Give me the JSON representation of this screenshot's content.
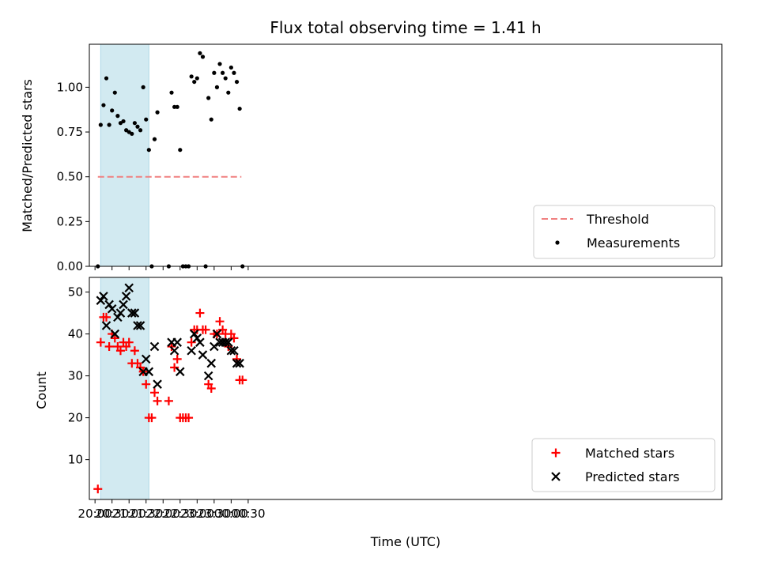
{
  "colors": {
    "threshold": "#f08080",
    "matched": "#ff0000",
    "predicted": "#000000",
    "measurements": "#000000",
    "shade": "#add8e6"
  },
  "chart_data": [
    {
      "type": "scatter",
      "title": "Flux total observing time = 1.41 h",
      "xlabel": "",
      "ylabel": "Matched/Predicted stars",
      "ylim": [
        0,
        1.24
      ],
      "yticks": [
        "0.00",
        "0.25",
        "0.50",
        "0.75",
        "1.00"
      ],
      "xrange_minutes": [
        -10,
        1105
      ],
      "shaded_interval": [
        "20:10",
        "21:35"
      ],
      "threshold": {
        "name": "Threshold",
        "y": 0.5,
        "x_start": "20:05",
        "x_end": "00:18"
      },
      "legend": {
        "position": "lower-right",
        "entries": [
          "Threshold",
          "Measurements"
        ]
      },
      "series": [
        {
          "name": "Measurements",
          "x": [
            "20:05",
            "20:10",
            "20:15",
            "20:20",
            "20:25",
            "20:30",
            "20:35",
            "20:40",
            "20:45",
            "20:50",
            "20:55",
            "21:00",
            "21:05",
            "21:10",
            "21:15",
            "21:20",
            "21:25",
            "21:30",
            "21:35",
            "21:40",
            "21:45",
            "21:50",
            "22:10",
            "22:15",
            "22:20",
            "22:25",
            "22:30",
            "22:35",
            "22:40",
            "22:45",
            "22:50",
            "22:55",
            "23:00",
            "23:05",
            "23:10",
            "23:15",
            "23:20",
            "23:25",
            "23:30",
            "23:35",
            "23:40",
            "23:45",
            "23:50",
            "23:55",
            "00:00",
            "00:05",
            "00:10",
            "00:15",
            "00:20"
          ],
          "values": [
            0.0,
            0.79,
            0.9,
            1.05,
            0.79,
            0.87,
            0.97,
            0.84,
            0.8,
            0.81,
            0.76,
            0.75,
            0.74,
            0.8,
            0.78,
            0.76,
            1.0,
            0.82,
            0.65,
            0.0,
            0.71,
            0.86,
            0.0,
            0.97,
            0.89,
            0.89,
            0.65,
            0.0,
            0.0,
            0.0,
            1.06,
            1.03,
            1.05,
            1.19,
            1.17,
            0.0,
            0.94,
            0.82,
            1.08,
            1.0,
            1.13,
            1.08,
            1.05,
            0.97,
            1.11,
            1.08,
            1.03,
            0.88,
            0.0
          ]
        }
      ]
    },
    {
      "type": "scatter",
      "title": "",
      "xlabel": "Time (UTC)",
      "ylabel": "Count",
      "ylim": [
        0.5,
        53.5
      ],
      "yticks": [
        "10",
        "20",
        "30",
        "40",
        "50"
      ],
      "xticks": [
        "20:00",
        "20:30",
        "21:00",
        "21:30",
        "22:00",
        "22:30",
        "23:00",
        "23:30",
        "00:00",
        "00:30"
      ],
      "xrange_minutes": [
        -10,
        1105
      ],
      "shaded_interval": [
        "20:10",
        "21:35"
      ],
      "legend": {
        "position": "lower-right",
        "entries": [
          "Matched stars",
          "Predicted stars"
        ]
      },
      "series": [
        {
          "name": "Matched stars",
          "x": [
            "20:05",
            "20:10",
            "20:15",
            "20:20",
            "20:25",
            "20:30",
            "20:35",
            "20:40",
            "20:45",
            "20:50",
            "20:55",
            "21:00",
            "21:05",
            "21:10",
            "21:15",
            "21:20",
            "21:25",
            "21:30",
            "21:35",
            "21:40",
            "21:45",
            "21:50",
            "22:10",
            "22:15",
            "22:20",
            "22:25",
            "22:30",
            "22:35",
            "22:40",
            "22:45",
            "22:50",
            "22:55",
            "23:00",
            "23:05",
            "23:10",
            "23:15",
            "23:20",
            "23:25",
            "23:30",
            "23:35",
            "23:40",
            "23:45",
            "23:50",
            "23:55",
            "00:00",
            "00:05",
            "00:10",
            "00:15",
            "00:20"
          ],
          "values": [
            3,
            38,
            44,
            44,
            37,
            40,
            39,
            37,
            36,
            38,
            37,
            38,
            33,
            36,
            33,
            32,
            31,
            28,
            20,
            20,
            26,
            24,
            24,
            37,
            32,
            34,
            20,
            20,
            20,
            20,
            38,
            41,
            41,
            45,
            41,
            41,
            28,
            27,
            40,
            40,
            43,
            41,
            40,
            37,
            40,
            39,
            34,
            29,
            29
          ]
        },
        {
          "name": "Predicted stars",
          "x": [
            "20:10",
            "20:15",
            "20:20",
            "20:25",
            "20:30",
            "20:35",
            "20:40",
            "20:45",
            "20:50",
            "20:55",
            "21:00",
            "21:05",
            "21:10",
            "21:15",
            "21:20",
            "21:25",
            "21:30",
            "21:35",
            "21:45",
            "21:50",
            "22:15",
            "22:20",
            "22:25",
            "22:30",
            "22:50",
            "22:55",
            "23:00",
            "23:05",
            "23:10",
            "23:20",
            "23:25",
            "23:30",
            "23:35",
            "23:40",
            "23:45",
            "23:50",
            "23:55",
            "00:00",
            "00:05",
            "00:10",
            "00:15"
          ],
          "values": [
            48,
            49,
            42,
            47,
            46,
            40,
            44,
            45,
            47,
            49,
            51,
            45,
            45,
            42,
            42,
            31,
            34,
            31,
            37,
            28,
            38,
            36,
            38,
            31,
            36,
            40,
            39,
            38,
            35,
            30,
            33,
            37,
            40,
            38,
            38,
            38,
            38,
            36,
            36,
            33,
            33
          ]
        }
      ]
    }
  ]
}
